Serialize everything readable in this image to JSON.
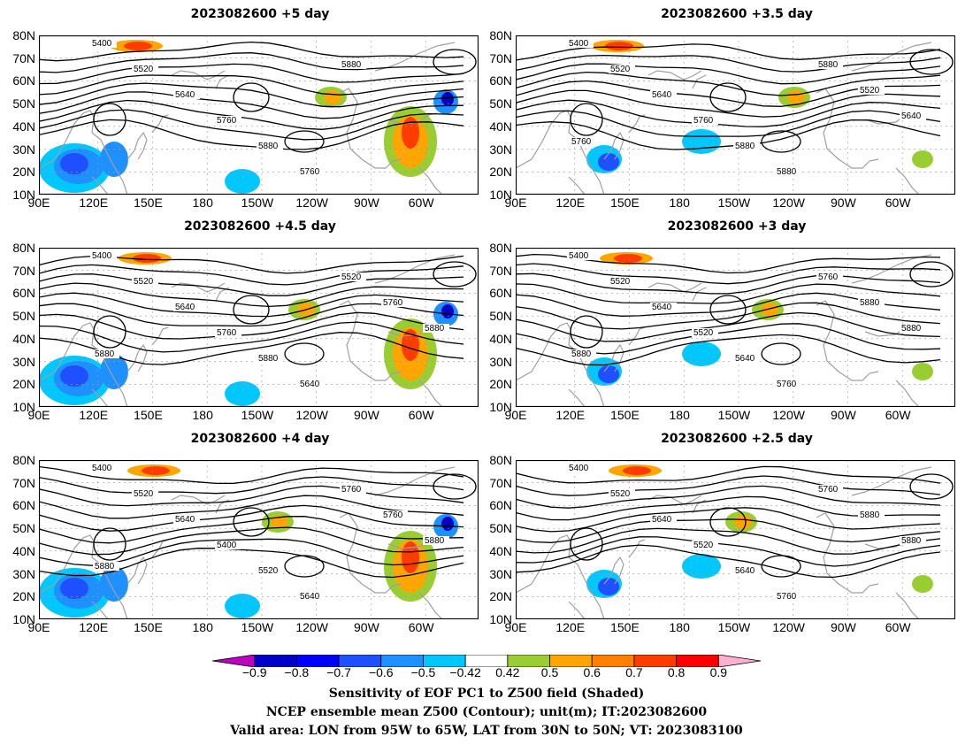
{
  "panels": [
    {
      "title": "2023082600 +5 day",
      "contour_labels": [
        "5400",
        "5520",
        "5640",
        "5760",
        "5880",
        "5760",
        "5880"
      ]
    },
    {
      "title": "2023082600 +3.5 day",
      "contour_labels": [
        "5400",
        "5520",
        "5640",
        "5760",
        "5880",
        "5880",
        "5880",
        "5520",
        "5640",
        "5760"
      ]
    },
    {
      "title": "2023082600 +4.5 day",
      "contour_labels": [
        "5400",
        "5520",
        "5640",
        "5760",
        "5880",
        "5640",
        "5520",
        "5760",
        "5880",
        "5880"
      ]
    },
    {
      "title": "2023082600 +3 day",
      "contour_labels": [
        "5400",
        "5520",
        "5640",
        "5520",
        "5640",
        "5760",
        "5760",
        "5880",
        "5880",
        "5880"
      ]
    },
    {
      "title": "2023082600 +4 day",
      "contour_labels": [
        "5400",
        "5520",
        "5640",
        "5400",
        "5520",
        "5640",
        "5760",
        "5760",
        "5880",
        "5880"
      ]
    },
    {
      "title": "2023082600 +2.5 day",
      "contour_labels": [
        "5400",
        "5520",
        "5640",
        "5520",
        "5640",
        "5760",
        "5760",
        "5880",
        "5880"
      ]
    }
  ],
  "lat_labels": [
    "80N",
    "70N",
    "60N",
    "50N",
    "40N",
    "30N",
    "20N",
    "10N"
  ],
  "lon_labels": [
    "90E",
    "120E",
    "150E",
    "180",
    "150W",
    "120W",
    "90W",
    "60W"
  ],
  "colorbar": {
    "labels": [
      "−0.9",
      "−0.8",
      "−0.7",
      "−0.6",
      "−0.5",
      "−0.42",
      "0.42",
      "0.5",
      "0.6",
      "0.7",
      "0.8",
      "0.9"
    ],
    "colors": [
      "#c000c0",
      "#0000c8",
      "#0000ff",
      "#1e50ff",
      "#1e90ff",
      "#00c8ff",
      "#ffffff",
      "#9acd32",
      "#ffa500",
      "#ff7f00",
      "#ff3c00",
      "#ff0000",
      "#ffb0d0"
    ]
  },
  "caption": {
    "line1": "Sensitivity of EOF PC1 to Z500 field (Shaded)",
    "line2": "NCEP ensemble mean Z500 (Contour); unit(m); IT:2023082600",
    "line3": "Valid area: LON from 95W to 65W, LAT from 30N to 50N; VT: 2023083100"
  }
}
